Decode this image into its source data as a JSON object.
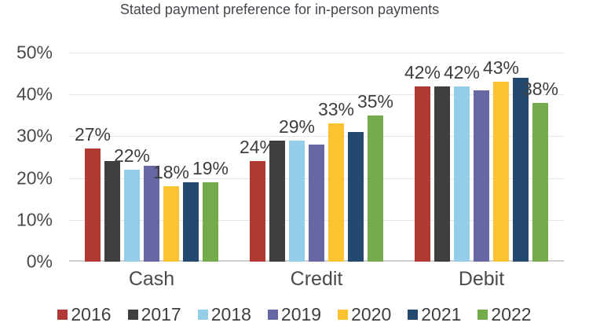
{
  "chart_data": {
    "type": "bar",
    "title": "Stated payment preference for in-person payments",
    "categories": [
      "Cash",
      "Credit",
      "Debit"
    ],
    "series": [
      {
        "name": "2016",
        "color": "#b03a33",
        "values": [
          27,
          24,
          42
        ],
        "labeled": true
      },
      {
        "name": "2017",
        "color": "#3f3f3f",
        "values": [
          24,
          29,
          42
        ],
        "labeled": false
      },
      {
        "name": "2018",
        "color": "#93cde7",
        "values": [
          22,
          29,
          42
        ],
        "labeled": true
      },
      {
        "name": "2019",
        "color": "#6867a6",
        "values": [
          23,
          28,
          41
        ],
        "labeled": false
      },
      {
        "name": "2020",
        "color": "#fcc232",
        "values": [
          18,
          33,
          43
        ],
        "labeled": true
      },
      {
        "name": "2021",
        "color": "#23496e",
        "values": [
          19,
          31,
          44
        ],
        "labeled": false
      },
      {
        "name": "2022",
        "color": "#74ab4d",
        "values": [
          19,
          35,
          38
        ],
        "labeled": true
      }
    ],
    "data_label_suffix": "%",
    "visible_data_labels": {
      "Cash": {
        "2016": "27%",
        "2018": "22%",
        "2020": "18%",
        "2022": "19%"
      },
      "Credit": {
        "2016": "24%",
        "2018": "29%",
        "2020": "33%",
        "2022": "35%"
      },
      "Debit": {
        "2016": "42%",
        "2018": "42%",
        "2020": "43%",
        "2022": "38%"
      }
    },
    "xlabel": "",
    "ylabel": "",
    "ylim": [
      0,
      50
    ],
    "yticks": [
      0,
      10,
      20,
      30,
      40,
      50
    ],
    "ytick_labels": [
      "0%",
      "10%",
      "20%",
      "30%",
      "40%",
      "50%"
    ],
    "grid": true,
    "legend_position": "bottom",
    "colors": {
      "background": "#ffffff",
      "gridline": "#e6e6e6",
      "axis_line": "#d0d0d0",
      "text": "#4a4a4a",
      "title_text": "#43474c"
    }
  }
}
